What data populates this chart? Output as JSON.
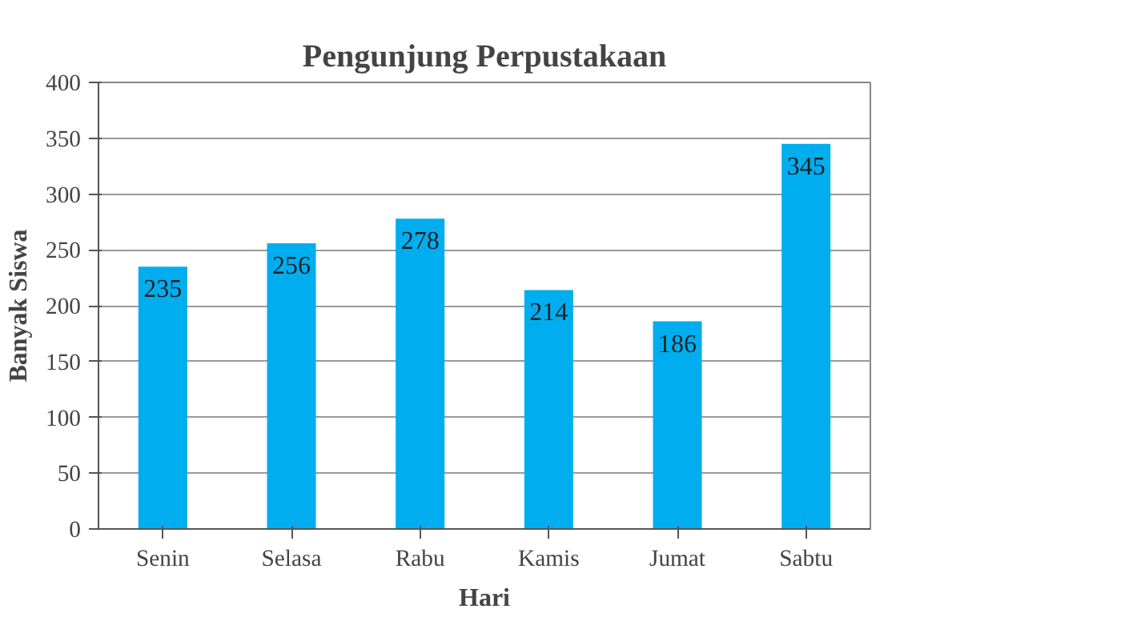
{
  "chart_data": {
    "type": "bar",
    "title": "Pengunjung Perpustakaan",
    "xlabel": "Hari",
    "ylabel": "Banyak Siswa",
    "categories": [
      "Senin",
      "Selasa",
      "Rabu",
      "Kamis",
      "Jumat",
      "Sabtu"
    ],
    "values": [
      235,
      256,
      278,
      214,
      186,
      345
    ],
    "color": "#00aeef",
    "ylim": [
      0,
      400
    ],
    "yticks": [
      0,
      50,
      100,
      150,
      200,
      250,
      300,
      350,
      400
    ],
    "grid": "y",
    "data_labels": true
  }
}
